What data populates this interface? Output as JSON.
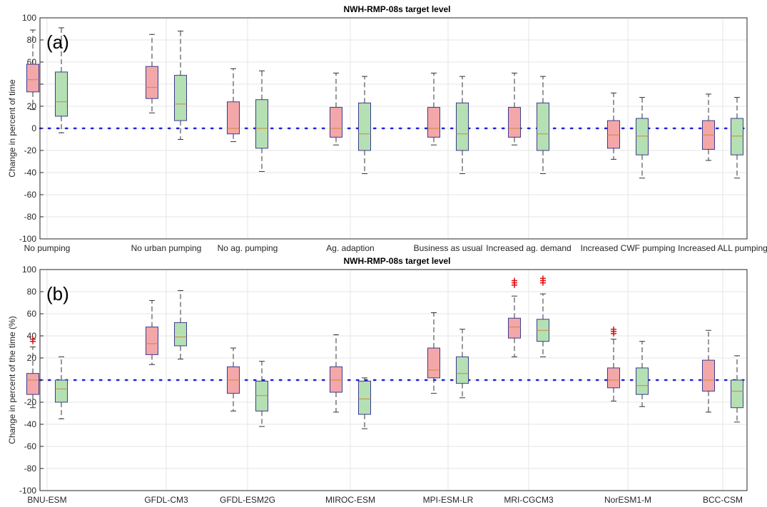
{
  "chart_data": [
    {
      "type": "boxplot",
      "title": "NWH-RMP-08s target level",
      "panel_label": "(a)",
      "ylabel": "Change in percent of time",
      "ylim": [
        -100,
        100
      ],
      "yticks": [
        100,
        80,
        60,
        40,
        20,
        0,
        -20,
        -40,
        -60,
        -80,
        -100
      ],
      "grid": true,
      "reference_line": 0,
      "categories": [
        "No pumping",
        "No urban pumping",
        "No ag. pumping",
        "Ag. adaption",
        "Business as usual",
        "Increased ag. demand",
        "Increased CWF pumping",
        "Increased ALL pumping"
      ],
      "series": [
        {
          "color": "#f4a7a9",
          "boxes": [
            {
              "min": 17,
              "q1": 33,
              "median": 44,
              "q3": 58,
              "max": 89,
              "outliers": []
            },
            {
              "min": 14,
              "q1": 27,
              "median": 37,
              "q3": 56,
              "max": 85,
              "outliers": []
            },
            {
              "min": -12,
              "q1": -5,
              "median": 0,
              "q3": 24,
              "max": 54,
              "outliers": []
            },
            {
              "min": -15,
              "q1": -8,
              "median": 0,
              "q3": 19,
              "max": 50,
              "outliers": []
            },
            {
              "min": -15,
              "q1": -8,
              "median": 0,
              "q3": 19,
              "max": 50,
              "outliers": []
            },
            {
              "min": -15,
              "q1": -8,
              "median": 0,
              "q3": 19,
              "max": 50,
              "outliers": []
            },
            {
              "min": -28,
              "q1": -18,
              "median": -6,
              "q3": 7,
              "max": 32,
              "outliers": []
            },
            {
              "min": -29,
              "q1": -19,
              "median": -6,
              "q3": 7,
              "max": 31,
              "outliers": []
            }
          ]
        },
        {
          "color": "#b5e0b3",
          "boxes": [
            {
              "min": -4,
              "q1": 11,
              "median": 24,
              "q3": 51,
              "max": 91,
              "outliers": []
            },
            {
              "min": -10,
              "q1": 7,
              "median": 22,
              "q3": 48,
              "max": 88,
              "outliers": []
            },
            {
              "min": -39,
              "q1": -18,
              "median": 0,
              "q3": 26,
              "max": 52,
              "outliers": []
            },
            {
              "min": -41,
              "q1": -20,
              "median": -5,
              "q3": 23,
              "max": 47,
              "outliers": []
            },
            {
              "min": -41,
              "q1": -20,
              "median": -5,
              "q3": 23,
              "max": 47,
              "outliers": []
            },
            {
              "min": -41,
              "q1": -20,
              "median": -5,
              "q3": 23,
              "max": 47,
              "outliers": []
            },
            {
              "min": -45,
              "q1": -24,
              "median": -7,
              "q3": 9,
              "max": 28,
              "outliers": []
            },
            {
              "min": -45,
              "q1": -24,
              "median": -7,
              "q3": 9,
              "max": 28,
              "outliers": []
            }
          ]
        }
      ]
    },
    {
      "type": "boxplot",
      "title": "NWH-RMP-08s target level",
      "panel_label": "(b)",
      "ylabel": "Change in percent of the time (%)",
      "ylim": [
        -100,
        100
      ],
      "yticks": [
        100,
        80,
        60,
        40,
        20,
        0,
        -20,
        -40,
        -60,
        -80,
        -100
      ],
      "grid": true,
      "reference_line": 0,
      "categories": [
        "BNU-ESM",
        "GFDL-CM3",
        "GFDL-ESM2G",
        "MIROC-ESM",
        "MPI-ESM-LR",
        "MRI-CGCM3",
        "NorESM1-M",
        "BCC-CSM"
      ],
      "series": [
        {
          "color": "#f4a7a9",
          "boxes": [
            {
              "min": -25,
              "q1": -13,
              "median": 0,
              "q3": 6,
              "max": 30,
              "outliers": [
                35,
                37
              ]
            },
            {
              "min": 14,
              "q1": 23,
              "median": 33,
              "q3": 48,
              "max": 72,
              "outliers": []
            },
            {
              "min": -28,
              "q1": -12,
              "median": 0,
              "q3": 12,
              "max": 29,
              "outliers": []
            },
            {
              "min": -29,
              "q1": -11,
              "median": 0,
              "q3": 12,
              "max": 41,
              "outliers": []
            },
            {
              "min": -12,
              "q1": 2,
              "median": 9,
              "q3": 29,
              "max": 61,
              "outliers": []
            },
            {
              "min": 21,
              "q1": 38,
              "median": 48,
              "q3": 56,
              "max": 76,
              "outliers": [
                86,
                88,
                90
              ]
            },
            {
              "min": -19,
              "q1": -7,
              "median": 0,
              "q3": 11,
              "max": 37,
              "outliers": [
                42,
                44,
                46
              ]
            },
            {
              "min": -29,
              "q1": -10,
              "median": 0,
              "q3": 18,
              "max": 45,
              "outliers": []
            }
          ]
        },
        {
          "color": "#b5e0b3",
          "boxes": [
            {
              "min": -35,
              "q1": -20,
              "median": -8,
              "q3": 0,
              "max": 21,
              "outliers": []
            },
            {
              "min": 19,
              "q1": 31,
              "median": 39,
              "q3": 52,
              "max": 81,
              "outliers": []
            },
            {
              "min": -42,
              "q1": -28,
              "median": -14,
              "q3": -1,
              "max": 17,
              "outliers": []
            },
            {
              "min": -44,
              "q1": -31,
              "median": -17,
              "q3": -1,
              "max": 2,
              "outliers": []
            },
            {
              "min": -16,
              "q1": -3,
              "median": 6,
              "q3": 21,
              "max": 46,
              "outliers": []
            },
            {
              "min": 21,
              "q1": 35,
              "median": 45,
              "q3": 55,
              "max": 78,
              "outliers": [
                88,
                90,
                92
              ]
            },
            {
              "min": -24,
              "q1": -13,
              "median": -5,
              "q3": 11,
              "max": 35,
              "outliers": []
            },
            {
              "min": -38,
              "q1": -25,
              "median": -10,
              "q3": 0,
              "max": 22,
              "outliers": []
            }
          ]
        }
      ]
    }
  ]
}
